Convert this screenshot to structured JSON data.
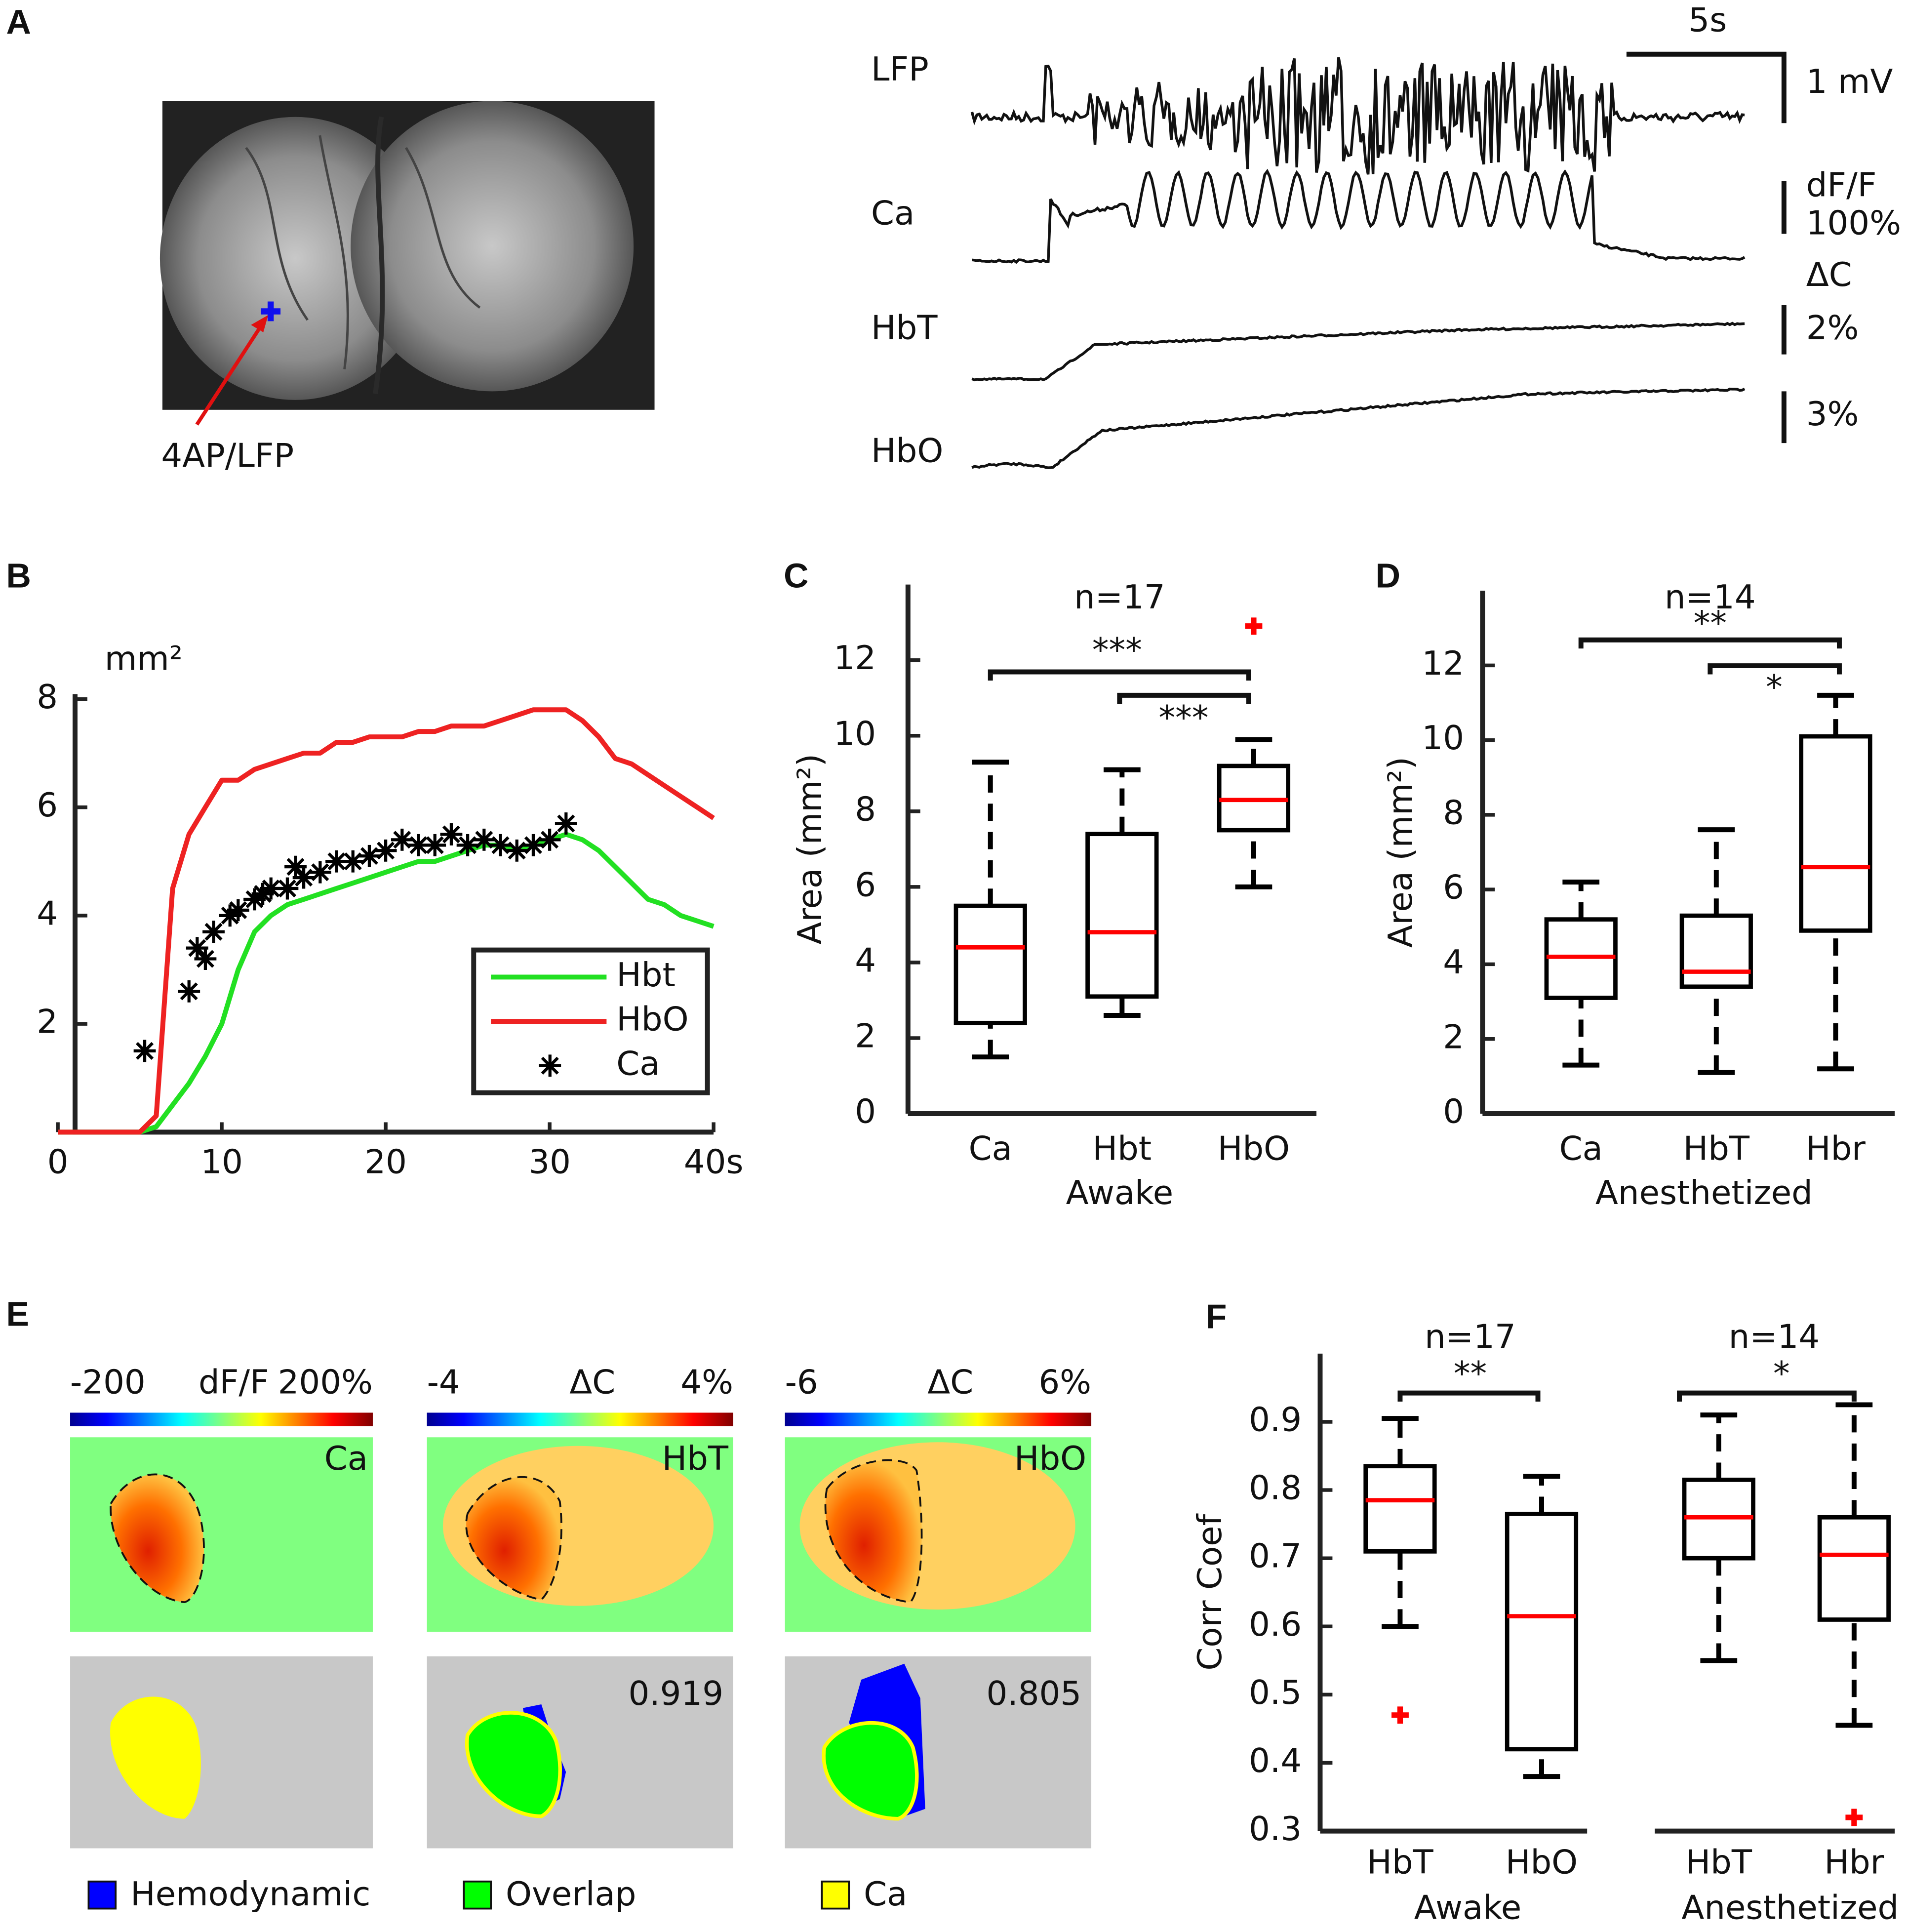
{
  "panel_labels": [
    "A",
    "B",
    "C",
    "D",
    "E",
    "F"
  ],
  "panel_a": {
    "site_label": "4AP/LFP",
    "traces": [
      "LFP",
      "Ca",
      "HbT",
      "HbO"
    ],
    "scale_time": "5s",
    "scale_lfp": "1 mV",
    "scale_ca": [
      "dF/F",
      "100%"
    ],
    "scale_hbt": [
      "ΔC",
      "2%"
    ],
    "scale_hbo": "3%"
  },
  "panel_e": {
    "colorbars": [
      {
        "min": "-200",
        "name": "dF/F",
        "max": "200%"
      },
      {
        "min": "-4",
        "name": "ΔC",
        "max": "4%"
      },
      {
        "min": "-6",
        "name": "ΔC",
        "max": "6%"
      }
    ],
    "map_labels": [
      "Ca",
      "HbT",
      "HbO"
    ],
    "overlap_values": [
      0.919,
      0.805
    ],
    "legend": [
      {
        "name": "Hemodynamic",
        "color": "#0000ff"
      },
      {
        "name": "Overlap",
        "color": "#00ff00"
      },
      {
        "name": "Ca",
        "color": "#ffff00"
      }
    ]
  },
  "chart_data": [
    {
      "type": "line",
      "ylabel": "mm²",
      "xlim": [
        0,
        40
      ],
      "ylim": [
        0,
        8
      ],
      "xticks": [
        0,
        10,
        20,
        30,
        {
          "value": 40,
          "label": "40s"
        }
      ],
      "yticks": [
        2,
        4,
        6,
        8
      ],
      "legend": "lower right",
      "series": [
        {
          "name": "Hbt",
          "color": "#22e022",
          "type": "line",
          "x": [
            0,
            1,
            2,
            3,
            4,
            5,
            6,
            7,
            8,
            9,
            10,
            11,
            12,
            13,
            14,
            15,
            16,
            17,
            18,
            19,
            20,
            21,
            22,
            23,
            24,
            25,
            26,
            27,
            28,
            29,
            30,
            31,
            32,
            33,
            34,
            35,
            36,
            37,
            38,
            39,
            40
          ],
          "values": [
            0,
            0,
            0,
            0,
            0,
            0,
            0.1,
            0.5,
            0.9,
            1.4,
            2.0,
            3.0,
            3.7,
            4.0,
            4.2,
            4.3,
            4.4,
            4.5,
            4.6,
            4.7,
            4.8,
            4.9,
            5.0,
            5.0,
            5.1,
            5.2,
            5.3,
            5.3,
            5.2,
            5.3,
            5.4,
            5.5,
            5.4,
            5.2,
            4.9,
            4.6,
            4.3,
            4.2,
            4.0,
            3.9,
            3.8
          ]
        },
        {
          "name": "HbO",
          "color": "#ee2222",
          "type": "line",
          "x": [
            0,
            1,
            2,
            3,
            4,
            5,
            6,
            7,
            8,
            9,
            10,
            11,
            12,
            13,
            14,
            15,
            16,
            17,
            18,
            19,
            20,
            21,
            22,
            23,
            24,
            25,
            26,
            27,
            28,
            29,
            30,
            31,
            32,
            33,
            34,
            35,
            36,
            37,
            38,
            39,
            40
          ],
          "values": [
            0,
            0,
            0,
            0,
            0,
            0,
            0.3,
            4.5,
            5.5,
            6.0,
            6.5,
            6.5,
            6.7,
            6.8,
            6.9,
            7.0,
            7.0,
            7.2,
            7.2,
            7.3,
            7.3,
            7.3,
            7.4,
            7.4,
            7.5,
            7.5,
            7.5,
            7.6,
            7.7,
            7.8,
            7.8,
            7.8,
            7.6,
            7.3,
            6.9,
            6.8,
            6.6,
            6.4,
            6.2,
            6.0,
            5.8
          ]
        },
        {
          "name": "Ca",
          "color": "#000000",
          "type": "scatter",
          "x": [
            5.3,
            8,
            8.5,
            9,
            9.5,
            10.5,
            11,
            12,
            12.5,
            13,
            14,
            14.5,
            15,
            16,
            17,
            18,
            19,
            20,
            21,
            22,
            23,
            24,
            25,
            26,
            27,
            28,
            29,
            30,
            31
          ],
          "values": [
            1.5,
            2.6,
            3.4,
            3.2,
            3.7,
            4.0,
            4.1,
            4.3,
            4.4,
            4.5,
            4.5,
            4.9,
            4.7,
            4.8,
            5.0,
            5.0,
            5.1,
            5.2,
            5.4,
            5.3,
            5.3,
            5.5,
            5.3,
            5.4,
            5.3,
            5.2,
            5.3,
            5.4,
            5.7
          ]
        }
      ]
    },
    {
      "type": "box",
      "title": "n=17",
      "xlabel": "Awake",
      "ylabel": "Area (mm²)",
      "ylim": [
        0,
        14
      ],
      "yticks": [
        0,
        2,
        4,
        6,
        8,
        10,
        12
      ],
      "box_color": "#000000",
      "median_color": "#ff0000",
      "outlier_color": "#ff0000",
      "categories": [
        "Ca",
        "Hbt",
        "HbO"
      ],
      "boxes": [
        {
          "whislo": 1.5,
          "q1": 2.4,
          "med": 4.4,
          "q3": 5.5,
          "whishi": 9.3,
          "outliers": []
        },
        {
          "whislo": 2.6,
          "q1": 3.1,
          "med": 4.8,
          "q3": 7.4,
          "whishi": 9.1,
          "outliers": []
        },
        {
          "whislo": 6.0,
          "q1": 7.5,
          "med": 8.3,
          "q3": 9.2,
          "whishi": 9.9,
          "outliers": [
            12.9
          ]
        }
      ],
      "annotations": [
        "***",
        "***"
      ]
    },
    {
      "type": "box",
      "title": "n=14",
      "xlabel": "Anesthetized",
      "ylabel": "Area (mm²)",
      "ylim": [
        0,
        14
      ],
      "yticks": [
        0,
        2,
        4,
        6,
        8,
        10,
        12
      ],
      "box_color": "#000000",
      "median_color": "#ff0000",
      "outlier_color": "#ff0000",
      "categories": [
        "Ca",
        "HbT",
        "Hbr"
      ],
      "boxes": [
        {
          "whislo": 1.3,
          "q1": 3.1,
          "med": 4.2,
          "q3": 5.2,
          "whishi": 6.2,
          "outliers": []
        },
        {
          "whislo": 1.1,
          "q1": 3.4,
          "med": 3.8,
          "q3": 5.3,
          "whishi": 7.6,
          "outliers": []
        },
        {
          "whislo": 1.2,
          "q1": 4.9,
          "med": 6.6,
          "q3": 10.1,
          "whishi": 11.2,
          "outliers": []
        }
      ],
      "annotations": [
        "**",
        "*"
      ]
    },
    {
      "type": "box",
      "ylabel": "Corr Coef",
      "ylim": [
        0.3,
        1.0
      ],
      "yticks": [
        0.3,
        0.4,
        0.5,
        0.6,
        0.7,
        0.8,
        0.9
      ],
      "box_color": "#000000",
      "median_color": "#ff0000",
      "outlier_color": "#ff0000",
      "groups": [
        {
          "title": "n=17",
          "label": "Awake"
        },
        {
          "title": "n=14",
          "label": "Anesthetized"
        }
      ],
      "categories": [
        "HbT",
        "HbO",
        "HbT",
        "Hbr"
      ],
      "boxes": [
        {
          "whislo": 0.6,
          "q1": 0.71,
          "med": 0.785,
          "q3": 0.835,
          "whishi": 0.905,
          "outliers": [
            0.47
          ]
        },
        {
          "whislo": 0.38,
          "q1": 0.42,
          "med": 0.615,
          "q3": 0.765,
          "whishi": 0.82,
          "outliers": []
        },
        {
          "whislo": 0.55,
          "q1": 0.7,
          "med": 0.76,
          "q3": 0.815,
          "whishi": 0.91,
          "outliers": []
        },
        {
          "whislo": 0.455,
          "q1": 0.61,
          "med": 0.705,
          "q3": 0.76,
          "whishi": 0.925,
          "outliers": [
            0.32
          ]
        }
      ],
      "annotations": [
        "**",
        "*"
      ]
    }
  ]
}
